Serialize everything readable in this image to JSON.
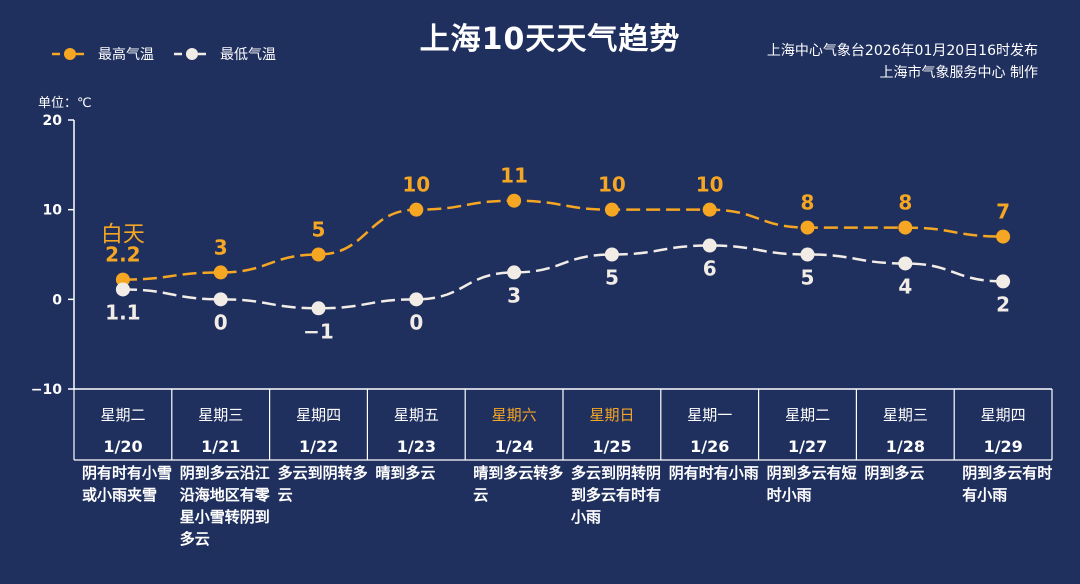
{
  "title": "上海10天天气趋势",
  "publisher_line1": "上海中心气象台2026年01月20日16时发布",
  "publisher_line2": "上海市气象服务中心  制作",
  "unit": "单位：℃",
  "colors": {
    "background": "#1f2f5e",
    "high": "#f5a623",
    "low": "#f2ece6",
    "weekend": "#f5a623"
  },
  "chart_data": {
    "type": "line",
    "title": "上海10天天气趋势",
    "ylabel": "单位：℃",
    "ylim": [
      -10,
      20
    ],
    "yticks": [
      "20",
      "10",
      "0",
      "−10"
    ],
    "yticks_values": [
      20,
      10,
      0,
      -10
    ],
    "grid": false,
    "legend_position": "top-left",
    "first_point_annotation": "白天",
    "series": [
      {
        "name": "最高气温",
        "color": "#f5a623",
        "values": [
          2.2,
          3,
          5,
          10,
          11,
          10,
          10,
          8,
          8,
          7
        ],
        "labels": [
          "2.2",
          "3",
          "5",
          "10",
          "11",
          "10",
          "10",
          "8",
          "8",
          "7"
        ]
      },
      {
        "name": "最低气温",
        "color": "#f2ece6",
        "values": [
          1.1,
          0,
          -1,
          0,
          3,
          5,
          6,
          5,
          4,
          2
        ],
        "labels": [
          "1.1",
          "0",
          "−1",
          "0",
          "3",
          "5",
          "6",
          "5",
          "4",
          "2"
        ]
      }
    ],
    "categories": [
      "1/20",
      "1/21",
      "1/22",
      "1/23",
      "1/24",
      "1/25",
      "1/26",
      "1/27",
      "1/28",
      "1/29"
    ]
  },
  "days": [
    {
      "weekday": "星期二",
      "date": "1/20",
      "weekend": false,
      "weather": "阴有时有小雪或小雨夹雪"
    },
    {
      "weekday": "星期三",
      "date": "1/21",
      "weekend": false,
      "weather": "阴到多云沿江沿海地区有零星小雪转阴到多云"
    },
    {
      "weekday": "星期四",
      "date": "1/22",
      "weekend": false,
      "weather": "多云到阴转多云"
    },
    {
      "weekday": "星期五",
      "date": "1/23",
      "weekend": false,
      "weather": "晴到多云"
    },
    {
      "weekday": "星期六",
      "date": "1/24",
      "weekend": true,
      "weather": "晴到多云转多云"
    },
    {
      "weekday": "星期日",
      "date": "1/25",
      "weekend": true,
      "weather": "多云到阴转阴到多云有时有小雨"
    },
    {
      "weekday": "星期一",
      "date": "1/26",
      "weekend": false,
      "weather": "阴有时有小雨"
    },
    {
      "weekday": "星期二",
      "date": "1/27",
      "weekend": false,
      "weather": "阴到多云有短时小雨"
    },
    {
      "weekday": "星期三",
      "date": "1/28",
      "weekend": false,
      "weather": "阴到多云"
    },
    {
      "weekday": "星期四",
      "date": "1/29",
      "weekend": false,
      "weather": "阴到多云有时有小雨"
    }
  ]
}
